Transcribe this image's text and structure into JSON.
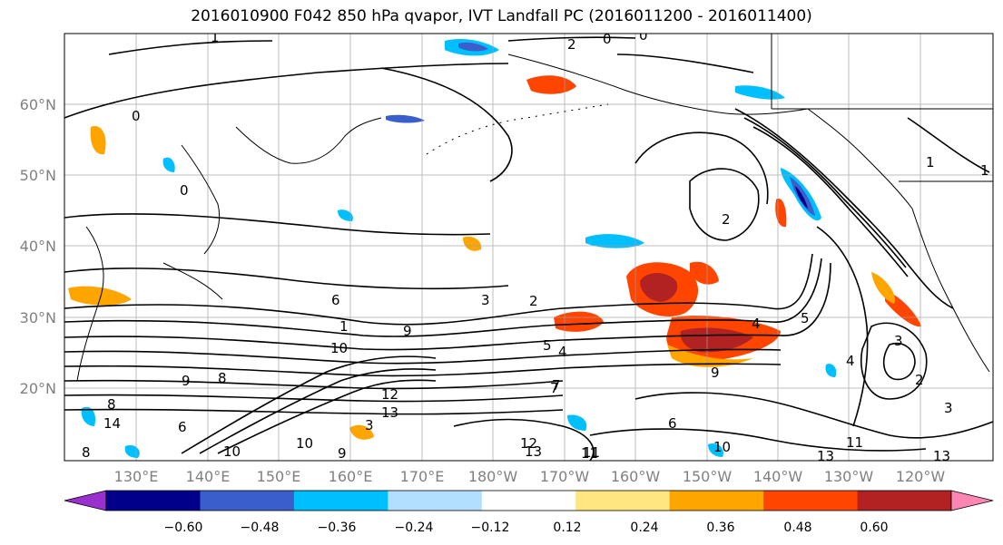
{
  "title": "2016010900 F042 850 hPa qvapor, IVT Landfall PC (2016011200 - 2016011400)",
  "lat_labels": [
    "60°N",
    "50°N",
    "40°N",
    "30°N",
    "20°N"
  ],
  "lon_labels": [
    "130°E",
    "140°E",
    "150°E",
    "160°E",
    "170°E",
    "180°W",
    "170°W",
    "160°W",
    "150°W",
    "140°W",
    "130°W",
    "120°W"
  ],
  "colorbar": {
    "colors": [
      "#9b30d0",
      "#00008b",
      "#3a5fcd",
      "#00bfff",
      "#b2dfff",
      "#ffffff",
      "#ffe680",
      "#ffa500",
      "#ff4500",
      "#b22222",
      "#ff85b4"
    ],
    "ticks": [
      "−0.60",
      "−0.48",
      "−0.36",
      "−0.24",
      "−0.12",
      "0.12",
      "0.24",
      "0.36",
      "0.48",
      "0.60"
    ]
  },
  "contour_labels": [
    "1",
    "0",
    "2",
    "0",
    "0",
    "1",
    "1",
    "1",
    "0",
    "2",
    "3",
    "4",
    "5",
    "6",
    "7",
    "8",
    "9",
    "10",
    "11",
    "12",
    "13",
    "14",
    "8",
    "9",
    "10",
    "9",
    "10",
    "11",
    "13",
    "12",
    "13",
    "11",
    "13",
    "4",
    "5",
    "3",
    "6",
    "4",
    "2",
    "3",
    "2",
    "3",
    "10",
    "6",
    "8",
    "9",
    "7"
  ],
  "colors": {
    "contour": "#000000",
    "grid": "#a0a0a0",
    "coast": "#000000"
  }
}
